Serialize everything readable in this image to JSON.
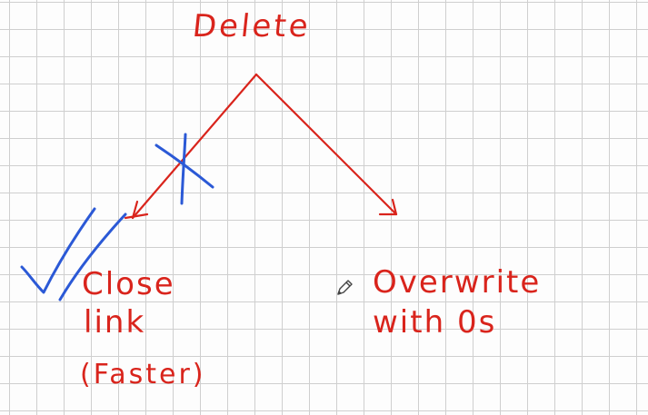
{
  "diagram": {
    "title": "Delete",
    "left_branch": {
      "line1": "Close",
      "line2": "link",
      "line3": "(Faster)",
      "marked_correct": true
    },
    "right_branch": {
      "line1": "Overwrite",
      "line2": "with 0s"
    }
  },
  "colors": {
    "red_ink": "#d9241c",
    "blue_ink": "#2b59d6",
    "grid": "#cfcfcf",
    "paper": "#fdfdfd"
  },
  "icons": {
    "cursor": "pencil-icon"
  }
}
